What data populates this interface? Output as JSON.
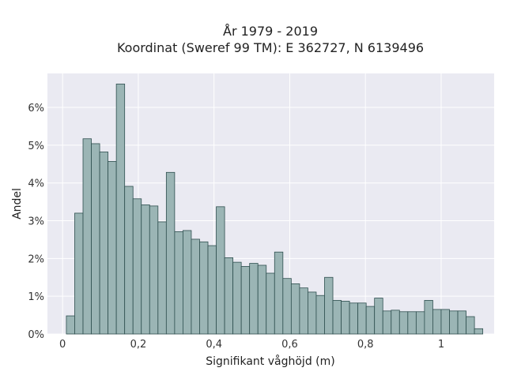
{
  "chart_data": {
    "type": "bar",
    "title": "År 1979 - 2019",
    "subtitle": "Koordinat (Sweref 99 TM): E 362727, N 6139496",
    "xlabel": "Signifikant våghöjd (m)",
    "ylabel": "Andel",
    "xlim": [
      -0.04,
      1.14
    ],
    "ylim": [
      0,
      0.069
    ],
    "xticks": [
      0,
      0.2,
      0.4,
      0.6,
      0.8,
      1.0
    ],
    "xtick_labels": [
      "0",
      "0,2",
      "0,4",
      "0,6",
      "0,8",
      "1"
    ],
    "yticks": [
      0,
      0.01,
      0.02,
      0.03,
      0.04,
      0.05,
      0.06
    ],
    "ytick_labels": [
      "0%",
      "1%",
      "2%",
      "3%",
      "4%",
      "5%",
      "6%"
    ],
    "grid": true,
    "bin_start": 0.01,
    "bin_width": 0.022,
    "values": [
      0.0048,
      0.032,
      0.0517,
      0.0504,
      0.0482,
      0.0457,
      0.0662,
      0.0391,
      0.0358,
      0.0342,
      0.0339,
      0.0297,
      0.0428,
      0.0271,
      0.0274,
      0.0251,
      0.0244,
      0.0234,
      0.0337,
      0.0202,
      0.019,
      0.0179,
      0.0187,
      0.0182,
      0.0161,
      0.0217,
      0.0147,
      0.0133,
      0.0122,
      0.0111,
      0.0102,
      0.015,
      0.0089,
      0.0087,
      0.0082,
      0.0082,
      0.0073,
      0.0095,
      0.0061,
      0.0063,
      0.0059,
      0.0059,
      0.0059,
      0.0089,
      0.0065,
      0.0065,
      0.0061,
      0.0061,
      0.0046,
      0.0014
    ]
  }
}
